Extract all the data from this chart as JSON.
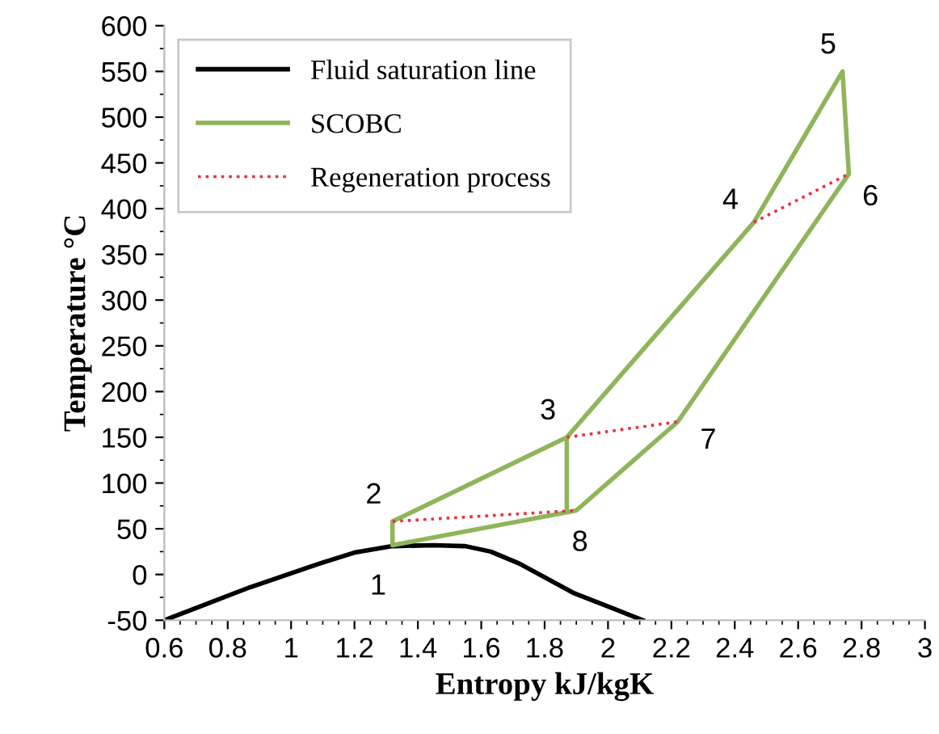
{
  "chart_data": {
    "type": "line",
    "xlabel": "Entropy kJ/kgK",
    "ylabel": "Temperature °C",
    "series": [
      {
        "name": "Fluid saturation line",
        "color": "#000000",
        "line_style": "solid",
        "x": [
          0.6,
          0.87,
          1.09,
          1.2,
          1.32,
          1.45,
          1.55,
          1.63,
          1.72,
          1.89,
          2.11
        ],
        "values": [
          -50,
          -14,
          12,
          24,
          31,
          32,
          31,
          25,
          12,
          -20,
          -50
        ]
      },
      {
        "name": "SCOBC",
        "color": "#8fb55a",
        "line_style": "solid",
        "x": [
          1.87,
          1.32,
          1.32,
          1.87,
          1.9,
          2.22,
          2.76,
          2.74,
          2.46,
          1.87,
          1.87
        ],
        "values": [
          150,
          58,
          32,
          68,
          70,
          167,
          438,
          550,
          385,
          150,
          68
        ]
      },
      {
        "name": "Regeneration process",
        "color": "#e8323c",
        "line_style": "dotted",
        "x": [
          1.32,
          1.9
        ],
        "values": [
          58,
          70
        ]
      },
      {
        "color": "#e8323c",
        "line_style": "dotted",
        "x": [
          1.87,
          2.22
        ],
        "values": [
          150,
          167
        ]
      },
      {
        "color": "#e8323c",
        "line_style": "dotted",
        "x": [
          2.46,
          2.76
        ],
        "values": [
          385,
          438
        ]
      }
    ],
    "xlim": [
      0.6,
      3
    ],
    "xticks": [
      0.6,
      0.8,
      1,
      1.2,
      1.4,
      1.6,
      1.8,
      2,
      2.2,
      2.4,
      2.6,
      2.8,
      3
    ],
    "ylim": [
      -50,
      600
    ],
    "yticks": [
      -50,
      0,
      50,
      100,
      150,
      200,
      250,
      300,
      350,
      400,
      450,
      500,
      550,
      600
    ],
    "grid": false,
    "legend": "top left",
    "annotations": [
      {
        "text": "1",
        "x": 1.32,
        "y": 32
      },
      {
        "text": "2",
        "x": 1.32,
        "y": 58
      },
      {
        "text": "3",
        "x": 1.87,
        "y": 150
      },
      {
        "text": "4",
        "x": 2.46,
        "y": 385
      },
      {
        "text": "5",
        "x": 2.74,
        "y": 550
      },
      {
        "text": "6",
        "x": 2.76,
        "y": 438
      },
      {
        "text": "7",
        "x": 2.22,
        "y": 167
      },
      {
        "text": "8",
        "x": 1.9,
        "y": 70
      }
    ]
  }
}
